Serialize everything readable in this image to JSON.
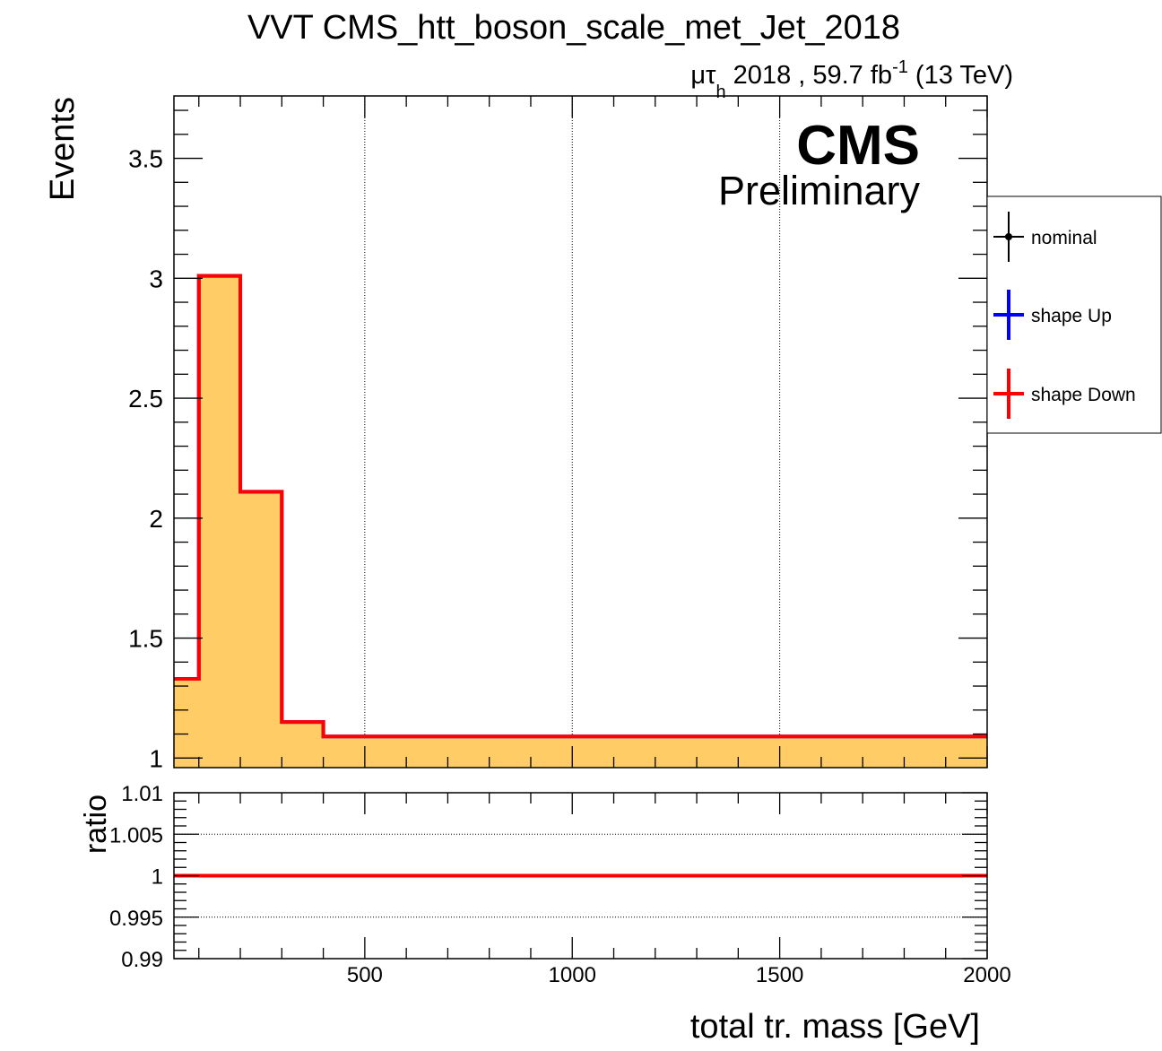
{
  "chart_data": {
    "type": "histogram",
    "title": "VVT CMS_htt_boson_scale_met_Jet_2018",
    "header": {
      "channel_mu": "μ",
      "channel_tau": "τ",
      "channel_sub": "h",
      "lumi_text": " 2018 , 59.7 fb",
      "lumi_sup": "-1",
      "energy_text": " (13 TeV)"
    },
    "cms_label": "CMS",
    "cms_sublabel": "Preliminary",
    "colors": {
      "fill": "#ffcc66",
      "nominal": "#000000",
      "shape_up": "#0000ff",
      "shape_down": "#ff0000"
    },
    "legend": [
      {
        "label": "nominal",
        "color": "#000000",
        "marker": true
      },
      {
        "label": "shape Up",
        "color": "#0000ff",
        "marker": false
      },
      {
        "label": "shape Down",
        "color": "#ff0000",
        "marker": false
      }
    ],
    "bin_edges": [
      40,
      100,
      200,
      300,
      400,
      500,
      2000
    ],
    "series": [
      {
        "name": "nominal",
        "values": [
          1.33,
          3.01,
          2.11,
          1.15,
          1.09,
          1.09
        ]
      },
      {
        "name": "shape Up",
        "values": [
          1.33,
          3.01,
          2.11,
          1.15,
          1.09,
          1.09
        ]
      },
      {
        "name": "shape Down",
        "values": [
          1.33,
          3.01,
          2.11,
          1.15,
          1.09,
          1.09
        ]
      }
    ],
    "main_pad": {
      "ylabel": "Events",
      "ylim": [
        0.96,
        3.76
      ],
      "yticks": [
        1,
        1.5,
        2,
        2.5,
        3,
        3.5
      ],
      "ytick_labels": [
        "1",
        "1.5",
        "2",
        "2.5",
        "3",
        "3.5"
      ],
      "grid_x": true
    },
    "ratio_pad": {
      "ylabel": "ratio",
      "ylim": [
        0.99,
        1.01
      ],
      "yticks": [
        0.99,
        0.995,
        1,
        1.005,
        1.01
      ],
      "ytick_labels": [
        "0.99",
        "0.995",
        "1",
        "1.005",
        "1.01"
      ],
      "ratio_values": [
        1,
        1,
        1,
        1,
        1,
        1
      ],
      "grid_y": true
    },
    "xlabel": "total tr. mass [GeV]",
    "xlim": [
      40,
      2000
    ],
    "xticks": [
      500,
      1000,
      1500,
      2000
    ],
    "xtick_labels": [
      "500",
      "1000",
      "1500",
      "2000"
    ]
  }
}
